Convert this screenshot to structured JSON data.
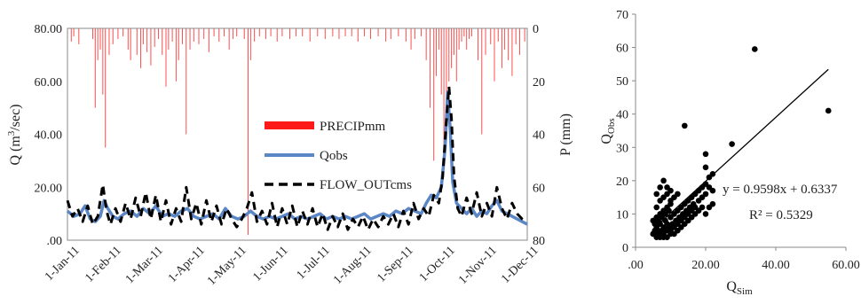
{
  "chart_data": [
    {
      "type": "line",
      "x_ticks": [
        "1-Jan-11",
        "1-Feb-11",
        "1-Mar-11",
        "1-Apr-11",
        "1-May-11",
        "1-Jun-11",
        "1-Jul-11",
        "1-Aug-11",
        "1-Sep-11",
        "1-Oct-11",
        "1-Nov-11",
        "1-Dec-11"
      ],
      "y_left": {
        "label_prefix": "Q (m",
        "label_sup": "3",
        "label_suffix": "/sec)",
        "lim": [
          0,
          80
        ],
        "ticks": [
          ".00",
          "20.00",
          "40.00",
          "60.00",
          "80.00"
        ]
      },
      "y_right": {
        "label": "P (mm)",
        "lim": [
          0,
          80
        ],
        "inverted": true,
        "ticks": [
          "0",
          "20",
          "40",
          "60",
          "80"
        ]
      },
      "legend": [
        "PRECIPmm",
        "Qobs",
        "FLOW_OUTcms"
      ],
      "colors": {
        "precip": "#ff4d4d",
        "qobs": "#5b87c6",
        "flow": "#000000"
      },
      "precip_events": [
        [
          3,
          5
        ],
        [
          5,
          3
        ],
        [
          9,
          6
        ],
        [
          20,
          4
        ],
        [
          22,
          30
        ],
        [
          24,
          12
        ],
        [
          26,
          8
        ],
        [
          28,
          25
        ],
        [
          30,
          45
        ],
        [
          33,
          10
        ],
        [
          36,
          6
        ],
        [
          40,
          4
        ],
        [
          44,
          3
        ],
        [
          48,
          8
        ],
        [
          50,
          12
        ],
        [
          55,
          10
        ],
        [
          58,
          15
        ],
        [
          60,
          6
        ],
        [
          63,
          9
        ],
        [
          66,
          14
        ],
        [
          69,
          7
        ],
        [
          72,
          4
        ],
        [
          75,
          10
        ],
        [
          78,
          22
        ],
        [
          80,
          8
        ],
        [
          83,
          5
        ],
        [
          86,
          20
        ],
        [
          88,
          12
        ],
        [
          91,
          6
        ],
        [
          94,
          40
        ],
        [
          97,
          8
        ],
        [
          100,
          5
        ],
        [
          104,
          6
        ],
        [
          108,
          4
        ],
        [
          112,
          9
        ],
        [
          116,
          3
        ],
        [
          120,
          5
        ],
        [
          124,
          3
        ],
        [
          128,
          8
        ],
        [
          131,
          4
        ],
        [
          134,
          3
        ],
        [
          140,
          4
        ],
        [
          143,
          78
        ],
        [
          145,
          12
        ],
        [
          148,
          5
        ],
        [
          152,
          3
        ],
        [
          157,
          4
        ],
        [
          161,
          3
        ],
        [
          166,
          5
        ],
        [
          170,
          3
        ],
        [
          176,
          4
        ],
        [
          181,
          3
        ],
        [
          186,
          3
        ],
        [
          192,
          5
        ],
        [
          198,
          3
        ],
        [
          204,
          4
        ],
        [
          210,
          3
        ],
        [
          215,
          4
        ],
        [
          220,
          3
        ],
        [
          225,
          3
        ],
        [
          230,
          5
        ],
        [
          235,
          3
        ],
        [
          240,
          4
        ],
        [
          246,
          3
        ],
        [
          252,
          5
        ],
        [
          256,
          4
        ],
        [
          262,
          3
        ],
        [
          268,
          5
        ],
        [
          272,
          8
        ],
        [
          275,
          4
        ],
        [
          280,
          3
        ],
        [
          284,
          12
        ],
        [
          287,
          30
        ],
        [
          290,
          50
        ],
        [
          292,
          18
        ],
        [
          294,
          8
        ],
        [
          296,
          25
        ],
        [
          298,
          45
        ],
        [
          300,
          30
        ],
        [
          302,
          20
        ],
        [
          304,
          15
        ],
        [
          306,
          10
        ],
        [
          308,
          20
        ],
        [
          310,
          8
        ],
        [
          312,
          5
        ],
        [
          314,
          3
        ],
        [
          316,
          8
        ],
        [
          318,
          4
        ],
        [
          320,
          3
        ],
        [
          325,
          12
        ],
        [
          328,
          40
        ],
        [
          331,
          10
        ],
        [
          335,
          6
        ],
        [
          338,
          20
        ],
        [
          341,
          5
        ],
        [
          344,
          15
        ],
        [
          346,
          8
        ],
        [
          349,
          12
        ],
        [
          352,
          18
        ],
        [
          355,
          6
        ],
        [
          358,
          10
        ],
        [
          362,
          5
        ]
      ],
      "qobs_points": [
        [
          0,
          11
        ],
        [
          5,
          9
        ],
        [
          10,
          10
        ],
        [
          14,
          13
        ],
        [
          18,
          8
        ],
        [
          22,
          7
        ],
        [
          26,
          9
        ],
        [
          29,
          15
        ],
        [
          32,
          12
        ],
        [
          36,
          9
        ],
        [
          40,
          8
        ],
        [
          45,
          10
        ],
        [
          50,
          11
        ],
        [
          55,
          9
        ],
        [
          60,
          12
        ],
        [
          65,
          10
        ],
        [
          70,
          13
        ],
        [
          75,
          9
        ],
        [
          80,
          10
        ],
        [
          85,
          9
        ],
        [
          90,
          11
        ],
        [
          95,
          12
        ],
        [
          100,
          9
        ],
        [
          105,
          8
        ],
        [
          110,
          9
        ],
        [
          115,
          10
        ],
        [
          120,
          8
        ],
        [
          125,
          12
        ],
        [
          130,
          9
        ],
        [
          135,
          8
        ],
        [
          140,
          9
        ],
        [
          145,
          11
        ],
        [
          150,
          9
        ],
        [
          155,
          8
        ],
        [
          160,
          9
        ],
        [
          165,
          8
        ],
        [
          170,
          9
        ],
        [
          175,
          10
        ],
        [
          180,
          8
        ],
        [
          185,
          9
        ],
        [
          190,
          8
        ],
        [
          195,
          9
        ],
        [
          200,
          10
        ],
        [
          205,
          8
        ],
        [
          210,
          9
        ],
        [
          215,
          8
        ],
        [
          220,
          9
        ],
        [
          225,
          8
        ],
        [
          230,
          9
        ],
        [
          235,
          10
        ],
        [
          240,
          8
        ],
        [
          245,
          9
        ],
        [
          250,
          10
        ],
        [
          255,
          9
        ],
        [
          260,
          11
        ],
        [
          265,
          10
        ],
        [
          270,
          12
        ],
        [
          275,
          11
        ],
        [
          280,
          10
        ],
        [
          284,
          14
        ],
        [
          288,
          17
        ],
        [
          292,
          16
        ],
        [
          296,
          20
        ],
        [
          299,
          35
        ],
        [
          301,
          56
        ],
        [
          303,
          42
        ],
        [
          305,
          22
        ],
        [
          308,
          14
        ],
        [
          312,
          12
        ],
        [
          316,
          10
        ],
        [
          320,
          12
        ],
        [
          324,
          9
        ],
        [
          328,
          11
        ],
        [
          332,
          10
        ],
        [
          336,
          13
        ],
        [
          340,
          15
        ],
        [
          344,
          11
        ],
        [
          348,
          10
        ],
        [
          352,
          9
        ],
        [
          356,
          8
        ],
        [
          360,
          7
        ],
        [
          364,
          6
        ]
      ],
      "flow_points": [
        [
          0,
          15
        ],
        [
          4,
          9
        ],
        [
          8,
          12
        ],
        [
          12,
          7
        ],
        [
          16,
          13
        ],
        [
          20,
          6
        ],
        [
          24,
          9
        ],
        [
          28,
          21
        ],
        [
          31,
          11
        ],
        [
          34,
          6
        ],
        [
          38,
          12
        ],
        [
          42,
          7
        ],
        [
          46,
          14
        ],
        [
          50,
          8
        ],
        [
          54,
          16
        ],
        [
          58,
          9
        ],
        [
          62,
          18
        ],
        [
          66,
          8
        ],
        [
          70,
          17
        ],
        [
          74,
          7
        ],
        [
          78,
          15
        ],
        [
          82,
          6
        ],
        [
          86,
          12
        ],
        [
          90,
          7
        ],
        [
          94,
          20
        ],
        [
          98,
          8
        ],
        [
          102,
          14
        ],
        [
          106,
          6
        ],
        [
          110,
          15
        ],
        [
          114,
          7
        ],
        [
          118,
          13
        ],
        [
          122,
          6
        ],
        [
          126,
          12
        ],
        [
          130,
          8
        ],
        [
          134,
          5
        ],
        [
          138,
          8
        ],
        [
          142,
          12
        ],
        [
          146,
          18
        ],
        [
          150,
          7
        ],
        [
          154,
          11
        ],
        [
          158,
          6
        ],
        [
          162,
          14
        ],
        [
          166,
          5
        ],
        [
          170,
          12
        ],
        [
          174,
          6
        ],
        [
          178,
          13
        ],
        [
          182,
          5
        ],
        [
          186,
          11
        ],
        [
          190,
          6
        ],
        [
          194,
          12
        ],
        [
          198,
          5
        ],
        [
          202,
          10
        ],
        [
          206,
          4
        ],
        [
          210,
          9
        ],
        [
          214,
          5
        ],
        [
          218,
          10
        ],
        [
          222,
          4
        ],
        [
          226,
          8
        ],
        [
          230,
          5
        ],
        [
          234,
          9
        ],
        [
          238,
          4
        ],
        [
          242,
          8
        ],
        [
          246,
          5
        ],
        [
          250,
          9
        ],
        [
          254,
          6
        ],
        [
          258,
          10
        ],
        [
          262,
          5
        ],
        [
          266,
          11
        ],
        [
          270,
          6
        ],
        [
          274,
          14
        ],
        [
          278,
          8
        ],
        [
          282,
          12
        ],
        [
          286,
          9
        ],
        [
          290,
          17
        ],
        [
          294,
          14
        ],
        [
          297,
          24
        ],
        [
          300,
          45
        ],
        [
          302,
          58
        ],
        [
          304,
          46
        ],
        [
          306,
          24
        ],
        [
          309,
          12
        ],
        [
          312,
          9
        ],
        [
          316,
          16
        ],
        [
          320,
          10
        ],
        [
          324,
          18
        ],
        [
          328,
          9
        ],
        [
          332,
          14
        ],
        [
          336,
          9
        ],
        [
          340,
          20
        ],
        [
          344,
          12
        ],
        [
          348,
          8
        ],
        [
          352,
          14
        ],
        [
          356,
          10
        ],
        [
          360,
          8
        ],
        [
          364,
          7
        ]
      ]
    },
    {
      "type": "scatter",
      "x_ticks": [
        ".00",
        "20.00",
        "40.00",
        "60.00"
      ],
      "y_ticks": [
        "0",
        "10",
        "20",
        "30",
        "40",
        "50",
        "60",
        "70"
      ],
      "xlim": [
        0,
        60
      ],
      "ylim": [
        0,
        70
      ],
      "xlabel_main": "Q",
      "xlabel_sub": "Sim",
      "ylabel_main": "Q",
      "ylabel_sub": "Obs",
      "regression": {
        "slope": 0.9598,
        "intercept": 0.6337,
        "x_range": [
          5,
          55
        ]
      },
      "equation": "y = 0.9598x + 0.6337",
      "r2": "R² = 0.5329",
      "points": [
        [
          5,
          4
        ],
        [
          5.5,
          5
        ],
        [
          6,
          4
        ],
        [
          6,
          6
        ],
        [
          6.5,
          5
        ],
        [
          7,
          4
        ],
        [
          7,
          7
        ],
        [
          7.5,
          5
        ],
        [
          8,
          6
        ],
        [
          8,
          4
        ],
        [
          8.5,
          8
        ],
        [
          9,
          5
        ],
        [
          9,
          7
        ],
        [
          9.5,
          6
        ],
        [
          10,
          5
        ],
        [
          10,
          9
        ],
        [
          10.5,
          7
        ],
        [
          11,
          6
        ],
        [
          11,
          10
        ],
        [
          11.5,
          8
        ],
        [
          12,
          7
        ],
        [
          12,
          11
        ],
        [
          12.5,
          9
        ],
        [
          13,
          8
        ],
        [
          13,
          12
        ],
        [
          13.5,
          10
        ],
        [
          14,
          9
        ],
        [
          14,
          13
        ],
        [
          14.5,
          11
        ],
        [
          15,
          10
        ],
        [
          15,
          14
        ],
        [
          15.5,
          12
        ],
        [
          16,
          11
        ],
        [
          16,
          15
        ],
        [
          16.5,
          13
        ],
        [
          17,
          12
        ],
        [
          17,
          16
        ],
        [
          18,
          14
        ],
        [
          18,
          17
        ],
        [
          19,
          15
        ],
        [
          19,
          18
        ],
        [
          20,
          16
        ],
        [
          20,
          19
        ],
        [
          21,
          18
        ],
        [
          21,
          21
        ],
        [
          22,
          17
        ],
        [
          22,
          22
        ],
        [
          6,
          9
        ],
        [
          7,
          10
        ],
        [
          8,
          11
        ],
        [
          9,
          12
        ],
        [
          10,
          13
        ],
        [
          6,
          12
        ],
        [
          7,
          14
        ],
        [
          8,
          15
        ],
        [
          9,
          16
        ],
        [
          10,
          14
        ],
        [
          11,
          15
        ],
        [
          12,
          16
        ],
        [
          6,
          16
        ],
        [
          7,
          18
        ],
        [
          8,
          20
        ],
        [
          9,
          18
        ],
        [
          10,
          17
        ],
        [
          5.5,
          7
        ],
        [
          6.5,
          8
        ],
        [
          7.5,
          9
        ],
        [
          8.5,
          10
        ],
        [
          9.5,
          11
        ],
        [
          5,
          8
        ],
        [
          6,
          3
        ],
        [
          7,
          3
        ],
        [
          8,
          3
        ],
        [
          9,
          3
        ],
        [
          10,
          4
        ],
        [
          11,
          4
        ],
        [
          12,
          5
        ],
        [
          13,
          6
        ],
        [
          14,
          7
        ],
        [
          15,
          8
        ],
        [
          16,
          9
        ],
        [
          17,
          10
        ],
        [
          18,
          11
        ],
        [
          19,
          12
        ],
        [
          20,
          10
        ],
        [
          21,
          12
        ],
        [
          22,
          13
        ],
        [
          14,
          36.5
        ],
        [
          20,
          24
        ],
        [
          20,
          28
        ],
        [
          27.5,
          31
        ],
        [
          34,
          59.5
        ],
        [
          55,
          41
        ]
      ]
    }
  ]
}
